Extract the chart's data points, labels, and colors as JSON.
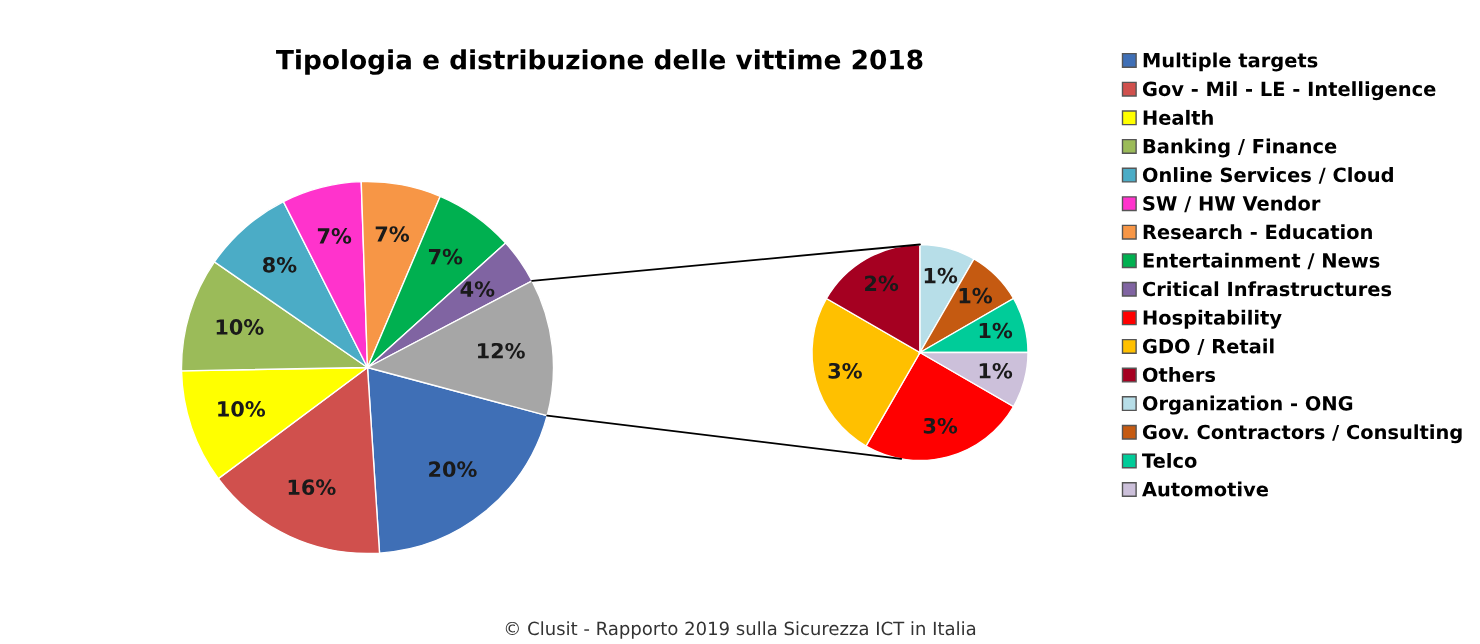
{
  "chart_data": [
    {
      "type": "pie",
      "title": "Tipologia e distribuzione delle vittime 2018",
      "categories": [
        "Multiple targets",
        "Gov - Mil - LE - Intelligence",
        "Health",
        "Banking / Finance",
        "Online Services / Cloud",
        "SW / HW Vendor",
        "Research - Education",
        "Entertainment / News",
        "Critical Infrastructures",
        null
      ],
      "values": [
        20,
        16,
        10,
        10,
        8,
        7,
        7,
        7,
        4,
        12
      ],
      "colors": [
        "#3f6fb6",
        "#d0504d",
        "#ffff00",
        "#9bbb59",
        "#4bacc6",
        "#ff33cc",
        "#f79646",
        "#00b050",
        "#8064a2",
        "#a6a6a6"
      ],
      "value_labels": [
        "20%",
        "16%",
        "10%",
        "10%",
        "8%",
        "7%",
        "7%",
        "7%",
        "4%",
        "12%"
      ],
      "legend": "right",
      "annotations": [
        "© Clusit - Rapporto 2019 sulla Sicurezza ICT in Italia"
      ]
    },
    {
      "type": "pie",
      "categories": [
        "Hospitability",
        "GDO / Retail",
        "Others",
        "Organization - ONG",
        "Gov. Contractors / Consulting",
        "Telco",
        "Automotive"
      ],
      "values": [
        3,
        3,
        2,
        1,
        1,
        1,
        1
      ],
      "colors": [
        "#ff0000",
        "#ffc000",
        "#a50021",
        "#b7dee8",
        "#c55a11",
        "#00cc99",
        "#ccc0da"
      ],
      "value_labels": [
        "3%",
        "3%",
        "2%",
        "1%",
        "1%",
        "1%",
        "1%"
      ],
      "legend": "right"
    }
  ]
}
